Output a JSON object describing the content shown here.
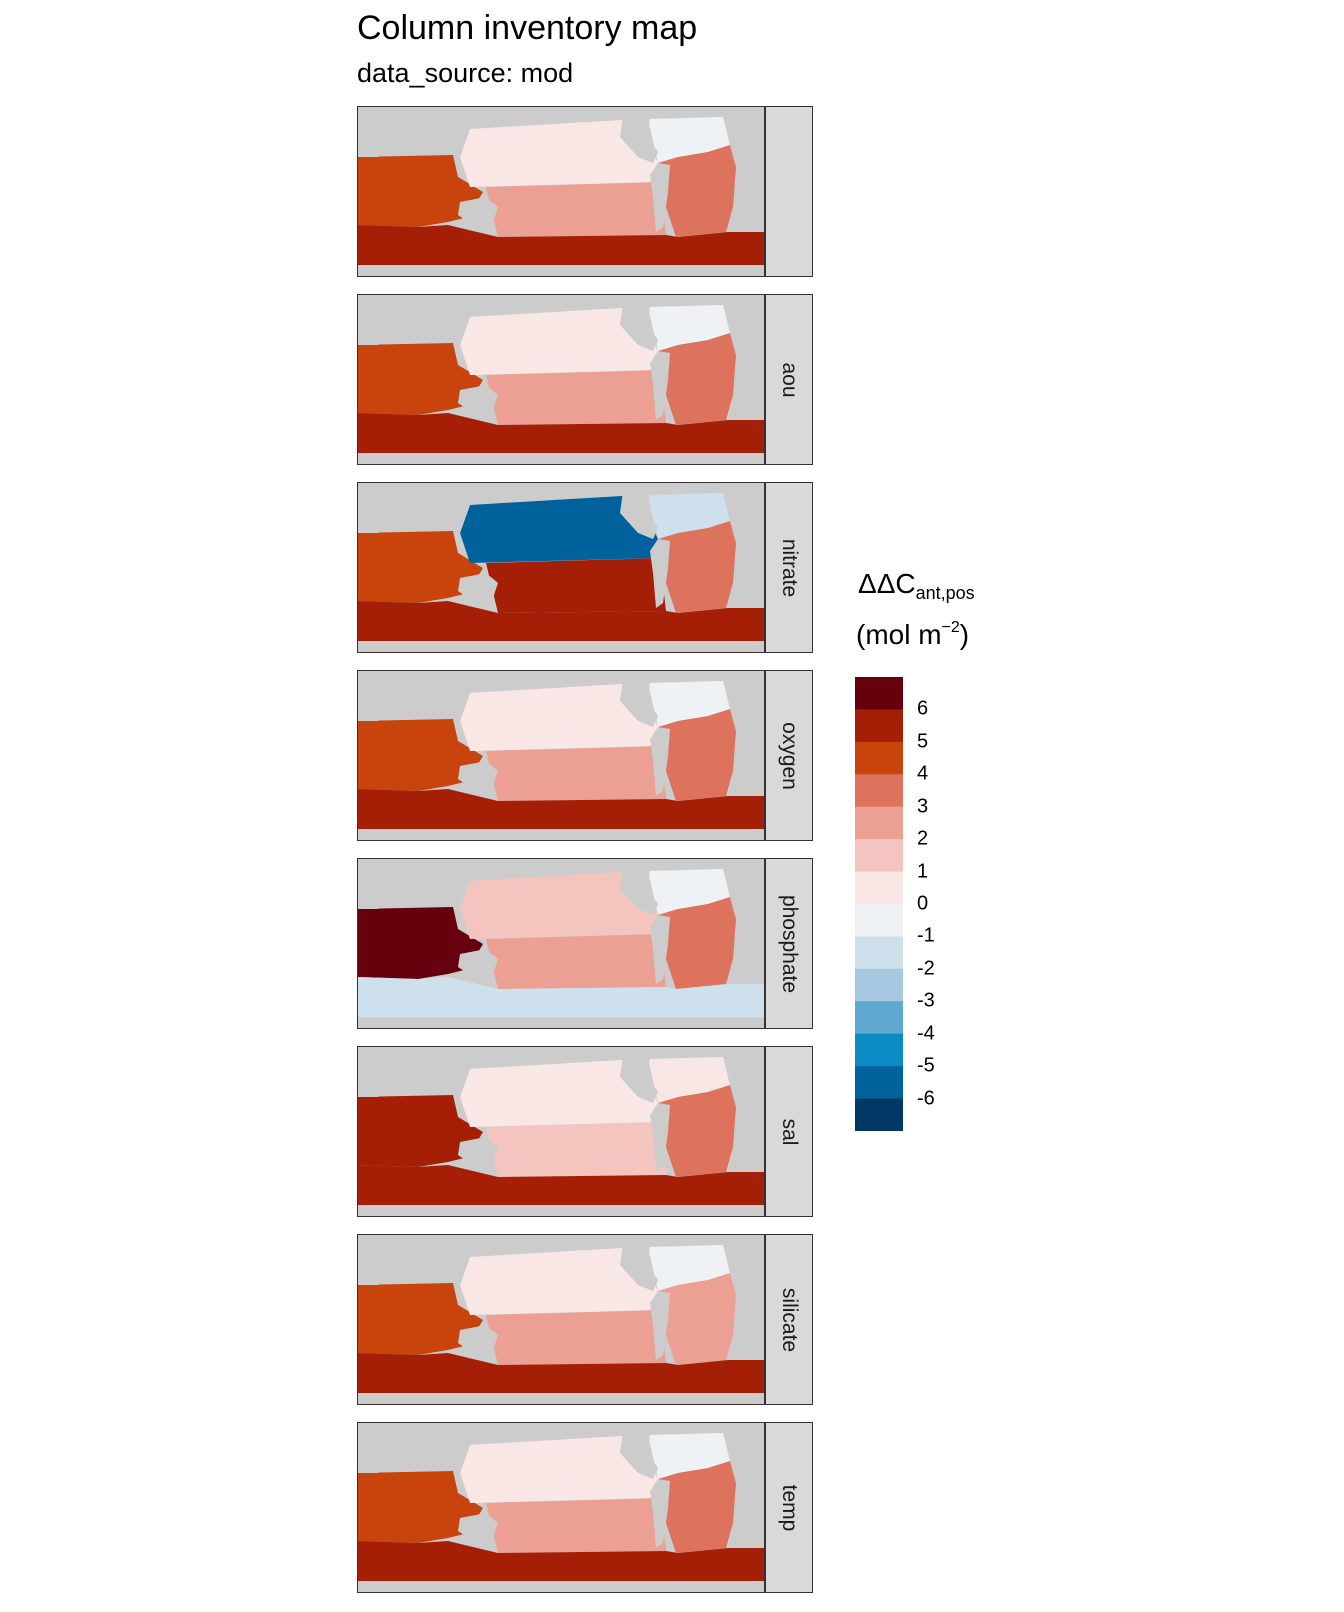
{
  "chart_data": {
    "type": "heatmap",
    "title": "Column inventory map",
    "subtitle": "data_source: mod",
    "legend_title": "ΔΔC",
    "legend_title_subscript": "ant,pos",
    "legend_unit": "(mol m",
    "legend_unit_superscript": "−2",
    "legend_unit_close": ")",
    "legend_placement": "right",
    "legend_breaks": [
      6,
      5,
      4,
      3,
      2,
      1,
      0,
      -1,
      -2,
      -3,
      -4,
      -5,
      -6
    ],
    "legend_break_labels": [
      "6",
      "5",
      "4",
      "3",
      "2",
      "1",
      "0",
      "-1",
      "-2",
      "-3",
      "-4",
      "-5",
      "-6"
    ],
    "colors": [
      "#67000d",
      "#a51f06",
      "#c9430d",
      "#de735d",
      "#ec9f93",
      "#f4c5bf",
      "#f9e7e5",
      "#eef2f5",
      "#cfe0ed",
      "#a5c7df",
      "#5fa8cf",
      "#0c8ac3",
      "#00629c",
      "#003865"
    ],
    "land_color": "#cccccc",
    "panels": [
      {
        "label": "",
        "values": {
          "indian": 4,
          "atlantic_north": -1,
          "atlantic": 3,
          "pacific": 0.5,
          "pacific_south": 2,
          "southern": 5
        }
      },
      {
        "label": "aou",
        "values": {
          "indian": 4,
          "atlantic_north": -1,
          "atlantic": 3,
          "pacific": 0,
          "pacific_south": 2,
          "southern": 5
        }
      },
      {
        "label": "nitrate",
        "values": {
          "indian": 4,
          "atlantic_north": -2,
          "atlantic": 3,
          "pacific": -6,
          "pacific_south": 5,
          "southern": 5
        }
      },
      {
        "label": "oxygen",
        "values": {
          "indian": 4,
          "atlantic_north": -1,
          "atlantic": 3,
          "pacific": 0,
          "pacific_south": 2,
          "southern": 5
        }
      },
      {
        "label": "phosphate",
        "values": {
          "indian": 6,
          "atlantic_north": -1,
          "atlantic": 3,
          "pacific": 1.5,
          "pacific_south": 2,
          "southern": -2
        }
      },
      {
        "label": "sal",
        "values": {
          "indian": 5,
          "atlantic_north": 0,
          "atlantic": 3,
          "pacific": 0,
          "pacific_south": 1,
          "southern": 5
        }
      },
      {
        "label": "silicate",
        "values": {
          "indian": 4,
          "atlantic_north": -1,
          "atlantic": 2,
          "pacific": 0.5,
          "pacific_south": 2,
          "southern": 5
        }
      },
      {
        "label": "temp",
        "values": {
          "indian": 4,
          "atlantic_north": -1,
          "atlantic": 3,
          "pacific": 0,
          "pacific_south": 2,
          "southern": 5
        }
      }
    ]
  }
}
